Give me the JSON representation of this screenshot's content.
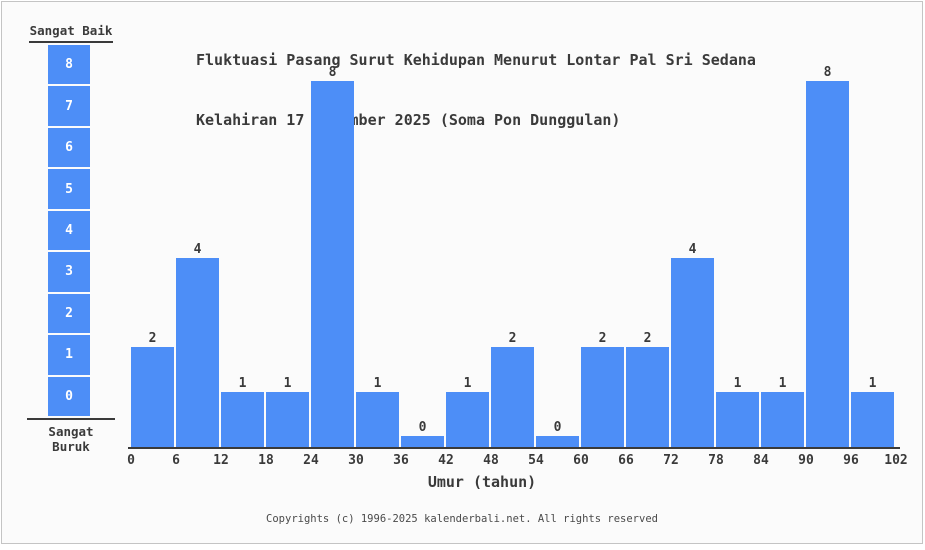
{
  "title": {
    "line1": "Fluktuasi Pasang Surut Kehidupan Menurut Lontar Pal Sri Sedana",
    "line2": "Kelahiran 17 Nopember 2025 (Soma Pon Dunggulan)"
  },
  "legend": {
    "top_label": "Sangat Baik",
    "bottom_label": "Sangat Buruk",
    "scale_values": [
      8,
      7,
      6,
      5,
      4,
      3,
      2,
      1,
      0
    ]
  },
  "chart_data": {
    "type": "bar",
    "title": "Fluktuasi Pasang Surut Kehidupan Menurut Lontar Pal Sri Sedana Kelahiran 17 Nopember 2025 (Soma Pon Dunggulan)",
    "categories": [
      "0-6",
      "6-12",
      "12-18",
      "18-24",
      "24-30",
      "30-36",
      "36-42",
      "42-48",
      "48-54",
      "54-60",
      "60-66",
      "66-72",
      "72-78",
      "78-84",
      "84-90",
      "90-96",
      "96-102"
    ],
    "values": [
      2,
      4,
      1,
      1,
      8,
      1,
      0,
      1,
      2,
      0,
      2,
      2,
      4,
      1,
      1,
      8,
      1
    ],
    "x_ticks": [
      0,
      6,
      12,
      18,
      24,
      30,
      36,
      42,
      48,
      54,
      60,
      66,
      72,
      78,
      84,
      90,
      96,
      102
    ],
    "xlabel": "Umur (tahun)",
    "ylabel": "",
    "ylim": [
      0,
      8
    ],
    "grid": false,
    "legend_position": "left",
    "value_labels": true
  },
  "footer": {
    "text": "Copyrights (c) 1996-2025 kalenderbali.net. All rights reserved"
  },
  "colors": {
    "bar": "#4d8ef7",
    "text": "#3a3a3a",
    "background": "#fbfbfb",
    "border": "#c4c4c4",
    "axis": "#3a3a3a",
    "label_on_bar": "#ffffff"
  }
}
